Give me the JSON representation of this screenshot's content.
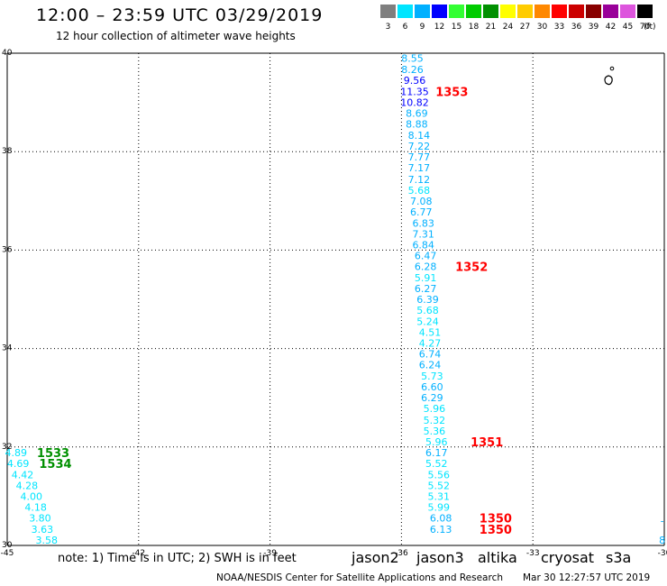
{
  "title": "12:00 – 23:59 UTC 03/29/2019",
  "subtitle": "12 hour collection of altimeter wave heights",
  "legend": {
    "unit": "(ft)",
    "items": [
      {
        "label": "3",
        "color": "#7f7f7f"
      },
      {
        "label": "6",
        "color": "#00e5ff"
      },
      {
        "label": "9",
        "color": "#00b0ff"
      },
      {
        "label": "12",
        "color": "#0000ff"
      },
      {
        "label": "15",
        "color": "#33ff33"
      },
      {
        "label": "18",
        "color": "#00cc00"
      },
      {
        "label": "21",
        "color": "#009000"
      },
      {
        "label": "24",
        "color": "#ffff00"
      },
      {
        "label": "27",
        "color": "#ffcc00"
      },
      {
        "label": "30",
        "color": "#ff8800"
      },
      {
        "label": "33",
        "color": "#ff0000"
      },
      {
        "label": "36",
        "color": "#cc0000"
      },
      {
        "label": "39",
        "color": "#880000"
      },
      {
        "label": "42",
        "color": "#990099"
      },
      {
        "label": "45",
        "color": "#dd55dd"
      },
      {
        "label": "70",
        "color": "#000000"
      }
    ]
  },
  "map": {
    "lon_ticks": [
      "-45",
      "-42",
      "-39",
      "-36",
      "-33",
      "-30"
    ],
    "lat_ticks": [
      "40",
      "38",
      "36",
      "34",
      "32",
      "30"
    ],
    "lon_range": [
      -45,
      -30
    ],
    "lat_range": [
      30,
      40
    ]
  },
  "track_main": [
    {
      "v": "8.55",
      "lon": -35.75,
      "lat": 39.9,
      "c": "#00b0ff"
    },
    {
      "v": "8.26",
      "lon": -35.75,
      "lat": 39.67,
      "c": "#00b0ff"
    },
    {
      "v": "9.56",
      "lon": -35.7,
      "lat": 39.45,
      "c": "#0000ff"
    },
    {
      "v": "11.35",
      "lon": -35.7,
      "lat": 39.22,
      "c": "#0000ff"
    },
    {
      "v": "10.82",
      "lon": -35.7,
      "lat": 39.0,
      "c": "#0000ff"
    },
    {
      "v": "8.69",
      "lon": -35.65,
      "lat": 38.78,
      "c": "#00b0ff"
    },
    {
      "v": "8.88",
      "lon": -35.65,
      "lat": 38.56,
      "c": "#00b0ff"
    },
    {
      "v": "8.14",
      "lon": -35.6,
      "lat": 38.33,
      "c": "#00b0ff"
    },
    {
      "v": "7.22",
      "lon": -35.6,
      "lat": 38.11,
      "c": "#00b0ff"
    },
    {
      "v": "7.77",
      "lon": -35.6,
      "lat": 37.89,
      "c": "#00b0ff"
    },
    {
      "v": "7.17",
      "lon": -35.6,
      "lat": 37.67,
      "c": "#00b0ff"
    },
    {
      "v": "7.12",
      "lon": -35.6,
      "lat": 37.44,
      "c": "#00b0ff"
    },
    {
      "v": "5.68",
      "lon": -35.6,
      "lat": 37.22,
      "c": "#00e5ff"
    },
    {
      "v": "7.08",
      "lon": -35.55,
      "lat": 37.0,
      "c": "#00b0ff"
    },
    {
      "v": "6.77",
      "lon": -35.55,
      "lat": 36.78,
      "c": "#00b0ff"
    },
    {
      "v": "6.83",
      "lon": -35.5,
      "lat": 36.55,
      "c": "#00b0ff"
    },
    {
      "v": "7.31",
      "lon": -35.5,
      "lat": 36.33,
      "c": "#00b0ff"
    },
    {
      "v": "6.84",
      "lon": -35.5,
      "lat": 36.11,
      "c": "#00b0ff"
    },
    {
      "v": "6.47",
      "lon": -35.45,
      "lat": 35.89,
      "c": "#00b0ff"
    },
    {
      "v": "6.28",
      "lon": -35.45,
      "lat": 35.67,
      "c": "#00b0ff"
    },
    {
      "v": "5.91",
      "lon": -35.45,
      "lat": 35.44,
      "c": "#00e5ff"
    },
    {
      "v": "6.27",
      "lon": -35.45,
      "lat": 35.22,
      "c": "#00b0ff"
    },
    {
      "v": "6.39",
      "lon": -35.4,
      "lat": 35.0,
      "c": "#00b0ff"
    },
    {
      "v": "5.68",
      "lon": -35.4,
      "lat": 34.78,
      "c": "#00e5ff"
    },
    {
      "v": "5.24",
      "lon": -35.4,
      "lat": 34.55,
      "c": "#00e5ff"
    },
    {
      "v": "4.51",
      "lon": -35.35,
      "lat": 34.33,
      "c": "#00e5ff"
    },
    {
      "v": "4.27",
      "lon": -35.35,
      "lat": 34.11,
      "c": "#00e5ff"
    },
    {
      "v": "6.74",
      "lon": -35.35,
      "lat": 33.89,
      "c": "#00b0ff"
    },
    {
      "v": "6.24",
      "lon": -35.35,
      "lat": 33.67,
      "c": "#00b0ff"
    },
    {
      "v": "5.73",
      "lon": -35.3,
      "lat": 33.44,
      "c": "#00e5ff"
    },
    {
      "v": "6.60",
      "lon": -35.3,
      "lat": 33.22,
      "c": "#00b0ff"
    },
    {
      "v": "6.29",
      "lon": -35.3,
      "lat": 33.0,
      "c": "#00b0ff"
    },
    {
      "v": "5.96",
      "lon": -35.25,
      "lat": 32.78,
      "c": "#00e5ff"
    },
    {
      "v": "5.32",
      "lon": -35.25,
      "lat": 32.55,
      "c": "#00e5ff"
    },
    {
      "v": "5.36",
      "lon": -35.25,
      "lat": 32.33,
      "c": "#00e5ff"
    },
    {
      "v": "5.96",
      "lon": -35.2,
      "lat": 32.11,
      "c": "#00e5ff"
    },
    {
      "v": "6.17",
      "lon": -35.2,
      "lat": 31.89,
      "c": "#00b0ff"
    },
    {
      "v": "5.52",
      "lon": -35.2,
      "lat": 31.67,
      "c": "#00e5ff"
    },
    {
      "v": "5.56",
      "lon": -35.15,
      "lat": 31.44,
      "c": "#00e5ff"
    },
    {
      "v": "5.52",
      "lon": -35.15,
      "lat": 31.22,
      "c": "#00e5ff"
    },
    {
      "v": "5.31",
      "lon": -35.15,
      "lat": 31.0,
      "c": "#00e5ff"
    },
    {
      "v": "5.99",
      "lon": -35.15,
      "lat": 30.78,
      "c": "#00e5ff"
    },
    {
      "v": "6.08",
      "lon": -35.1,
      "lat": 30.56,
      "c": "#00b0ff"
    },
    {
      "v": "6.13",
      "lon": -35.1,
      "lat": 30.33,
      "c": "#00b0ff"
    }
  ],
  "track_west": [
    {
      "v": "4.89",
      "lon": -44.8,
      "lat": 31.89,
      "c": "#00e5ff"
    },
    {
      "v": "4.69",
      "lon": -44.75,
      "lat": 31.67,
      "c": "#00e5ff"
    },
    {
      "v": "4.42",
      "lon": -44.65,
      "lat": 31.44,
      "c": "#00e5ff"
    },
    {
      "v": "4.28",
      "lon": -44.55,
      "lat": 31.22,
      "c": "#00e5ff"
    },
    {
      "v": "4.00",
      "lon": -44.45,
      "lat": 31.0,
      "c": "#00e5ff"
    },
    {
      "v": "4.18",
      "lon": -44.35,
      "lat": 30.78,
      "c": "#00e5ff"
    },
    {
      "v": "3.80",
      "lon": -44.25,
      "lat": 30.56,
      "c": "#00e5ff"
    },
    {
      "v": "3.63",
      "lon": -44.2,
      "lat": 30.33,
      "c": "#00e5ff"
    },
    {
      "v": "3.58",
      "lon": -44.1,
      "lat": 30.11,
      "c": "#00e5ff"
    }
  ],
  "pass_labels": [
    {
      "text": "1353",
      "lon": -34.85,
      "lat": 39.22,
      "c": "#ff0000"
    },
    {
      "text": "1352",
      "lon": -34.4,
      "lat": 35.67,
      "c": "#ff0000"
    },
    {
      "text": "1351",
      "lon": -34.05,
      "lat": 32.11,
      "c": "#ff0000"
    },
    {
      "text": "1350",
      "lon": -33.85,
      "lat": 30.56,
      "c": "#ff0000"
    },
    {
      "text": "1350",
      "lon": -33.85,
      "lat": 30.33,
      "c": "#ff0000"
    },
    {
      "text": "1533",
      "lon": -43.95,
      "lat": 31.89,
      "c": "#009000"
    },
    {
      "text": "1534",
      "lon": -43.9,
      "lat": 31.67,
      "c": "#009000"
    }
  ],
  "edge_labels": [
    {
      "text": "8",
      "lon": -30.05,
      "lat": 30.11,
      "c": "#00b0ff"
    },
    {
      "text": "-",
      "lon": -30.05,
      "lat": 30.5,
      "c": "#00b0ff"
    }
  ],
  "note": {
    "prefix": "note:",
    "text": "1) Time is in UTC; 2) SWH is in feet"
  },
  "satellites": [
    {
      "name": "jason2",
      "color": "#0000ff"
    },
    {
      "name": "jason3",
      "color": "#009000"
    },
    {
      "name": "altika",
      "color": "#ff8800"
    },
    {
      "name": "cryosat",
      "color": "#ff0000"
    },
    {
      "name": "s3a",
      "color": "#990000"
    }
  ],
  "credit": "NOAA/NESDIS Center for Satellite Applications and Research",
  "timestamp": "Mar 30 12:27:57 UTC 2019"
}
